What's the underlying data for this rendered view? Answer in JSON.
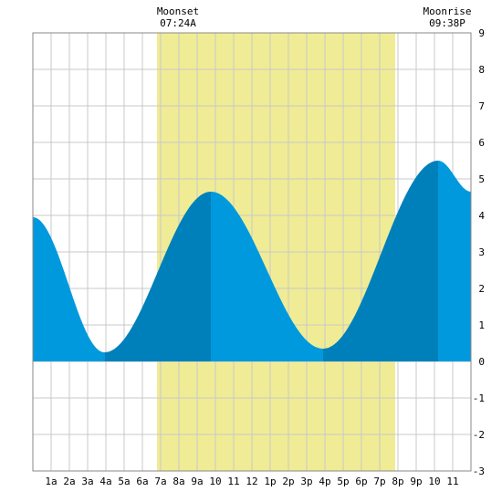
{
  "chart_data": {
    "type": "area",
    "x_unit": "hours since midnight",
    "x_tick_labels": [
      "1a",
      "2a",
      "3a",
      "4a",
      "5a",
      "6a",
      "7a",
      "8a",
      "9a",
      "10",
      "11",
      "12",
      "1p",
      "2p",
      "3p",
      "4p",
      "5p",
      "6p",
      "7p",
      "8p",
      "9p",
      "10",
      "11"
    ],
    "y_ticks": [
      -3,
      -2,
      -1,
      0,
      1,
      2,
      3,
      4,
      5,
      6,
      7,
      8,
      9
    ],
    "xlim": [
      0,
      24
    ],
    "ylim": [
      -3,
      9
    ],
    "grid": true,
    "daylight_span": [
      6.8,
      19.85
    ],
    "tide_extremes": [
      {
        "time": 0.0,
        "height": 3.95,
        "type": "start"
      },
      {
        "time": 3.92,
        "height": 0.25,
        "type": "low"
      },
      {
        "time": 9.75,
        "height": 4.65,
        "type": "high"
      },
      {
        "time": 15.9,
        "height": 0.35,
        "type": "low"
      },
      {
        "time": 22.2,
        "height": 5.5,
        "type": "high"
      },
      {
        "time": 24.0,
        "height": 4.65,
        "type": "end"
      }
    ],
    "dark_shade_intervals": [
      [
        3.92,
        9.75
      ],
      [
        15.9,
        22.2
      ]
    ],
    "colors": {
      "daylight": "#f0ec96",
      "tide_light": "#0099dd",
      "tide_dark": "#0080bb",
      "grid": "#c8c8c8"
    }
  },
  "annotations": {
    "moonset": {
      "label": "Moonset",
      "time": "07:24A"
    },
    "moonrise": {
      "label": "Moonrise",
      "time": "09:38P"
    }
  }
}
